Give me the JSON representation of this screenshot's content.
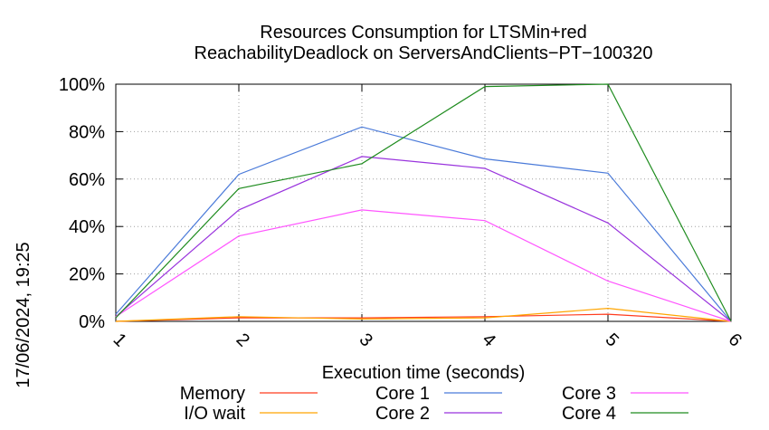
{
  "chart_data": {
    "type": "line",
    "title": [
      "Resources Consumption for LTSMin+red",
      "ReachabilityDeadlock on ServersAndClients−PT−100320"
    ],
    "xlabel": "Execution time (seconds)",
    "ylabel": "",
    "side_label": "17/06/2024, 19:25",
    "x": [
      1,
      2,
      3,
      4,
      5,
      6
    ],
    "x_ticks": [
      "1",
      "2",
      "3",
      "4",
      "5",
      "6"
    ],
    "ylim": [
      0,
      100
    ],
    "y_ticks": [
      "0%",
      "20%",
      "40%",
      "60%",
      "80%",
      "100%"
    ],
    "grid": true,
    "legend_position": "bottom",
    "series": [
      {
        "name": "Memory",
        "color": "#ff3c1e",
        "values": [
          0,
          1.5,
          1.5,
          2,
          3,
          0
        ]
      },
      {
        "name": "I/O wait",
        "color": "#ffa500",
        "values": [
          0,
          2,
          1,
          1.5,
          5.5,
          0
        ]
      },
      {
        "name": "Core 1",
        "color": "#4a7ad9",
        "values": [
          3,
          62,
          82,
          68.5,
          62.5,
          0
        ]
      },
      {
        "name": "Core 2",
        "color": "#9933dd",
        "values": [
          2,
          47,
          69.5,
          64.5,
          41.5,
          0
        ]
      },
      {
        "name": "Core 3",
        "color": "#ff55ff",
        "values": [
          2,
          36,
          47,
          42.5,
          17,
          0
        ]
      },
      {
        "name": "Core 4",
        "color": "#1f8c1f",
        "values": [
          1.5,
          56,
          66.5,
          99,
          100,
          0
        ]
      }
    ]
  }
}
